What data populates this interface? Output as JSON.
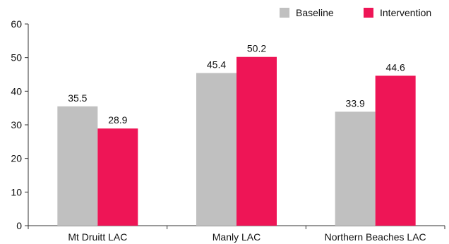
{
  "chart_data": {
    "type": "bar",
    "categories": [
      "Mt Druitt LAC",
      "Manly LAC",
      "Northern Beaches LAC"
    ],
    "series": [
      {
        "name": "Baseline",
        "values": [
          35.5,
          45.4,
          33.9
        ],
        "color": "#c0c0c0"
      },
      {
        "name": "Intervention",
        "values": [
          28.9,
          50.2,
          44.6
        ],
        "color": "#ee1556"
      }
    ],
    "ylim": [
      0,
      60
    ],
    "yticks": [
      0,
      10,
      20,
      30,
      40,
      50,
      60
    ],
    "grid": false,
    "legend_position": "top-right",
    "data_labels": [
      "35.5",
      "28.9",
      "45.4",
      "50.2",
      "33.9",
      "44.6"
    ],
    "title": "",
    "xlabel": "",
    "ylabel": ""
  }
}
